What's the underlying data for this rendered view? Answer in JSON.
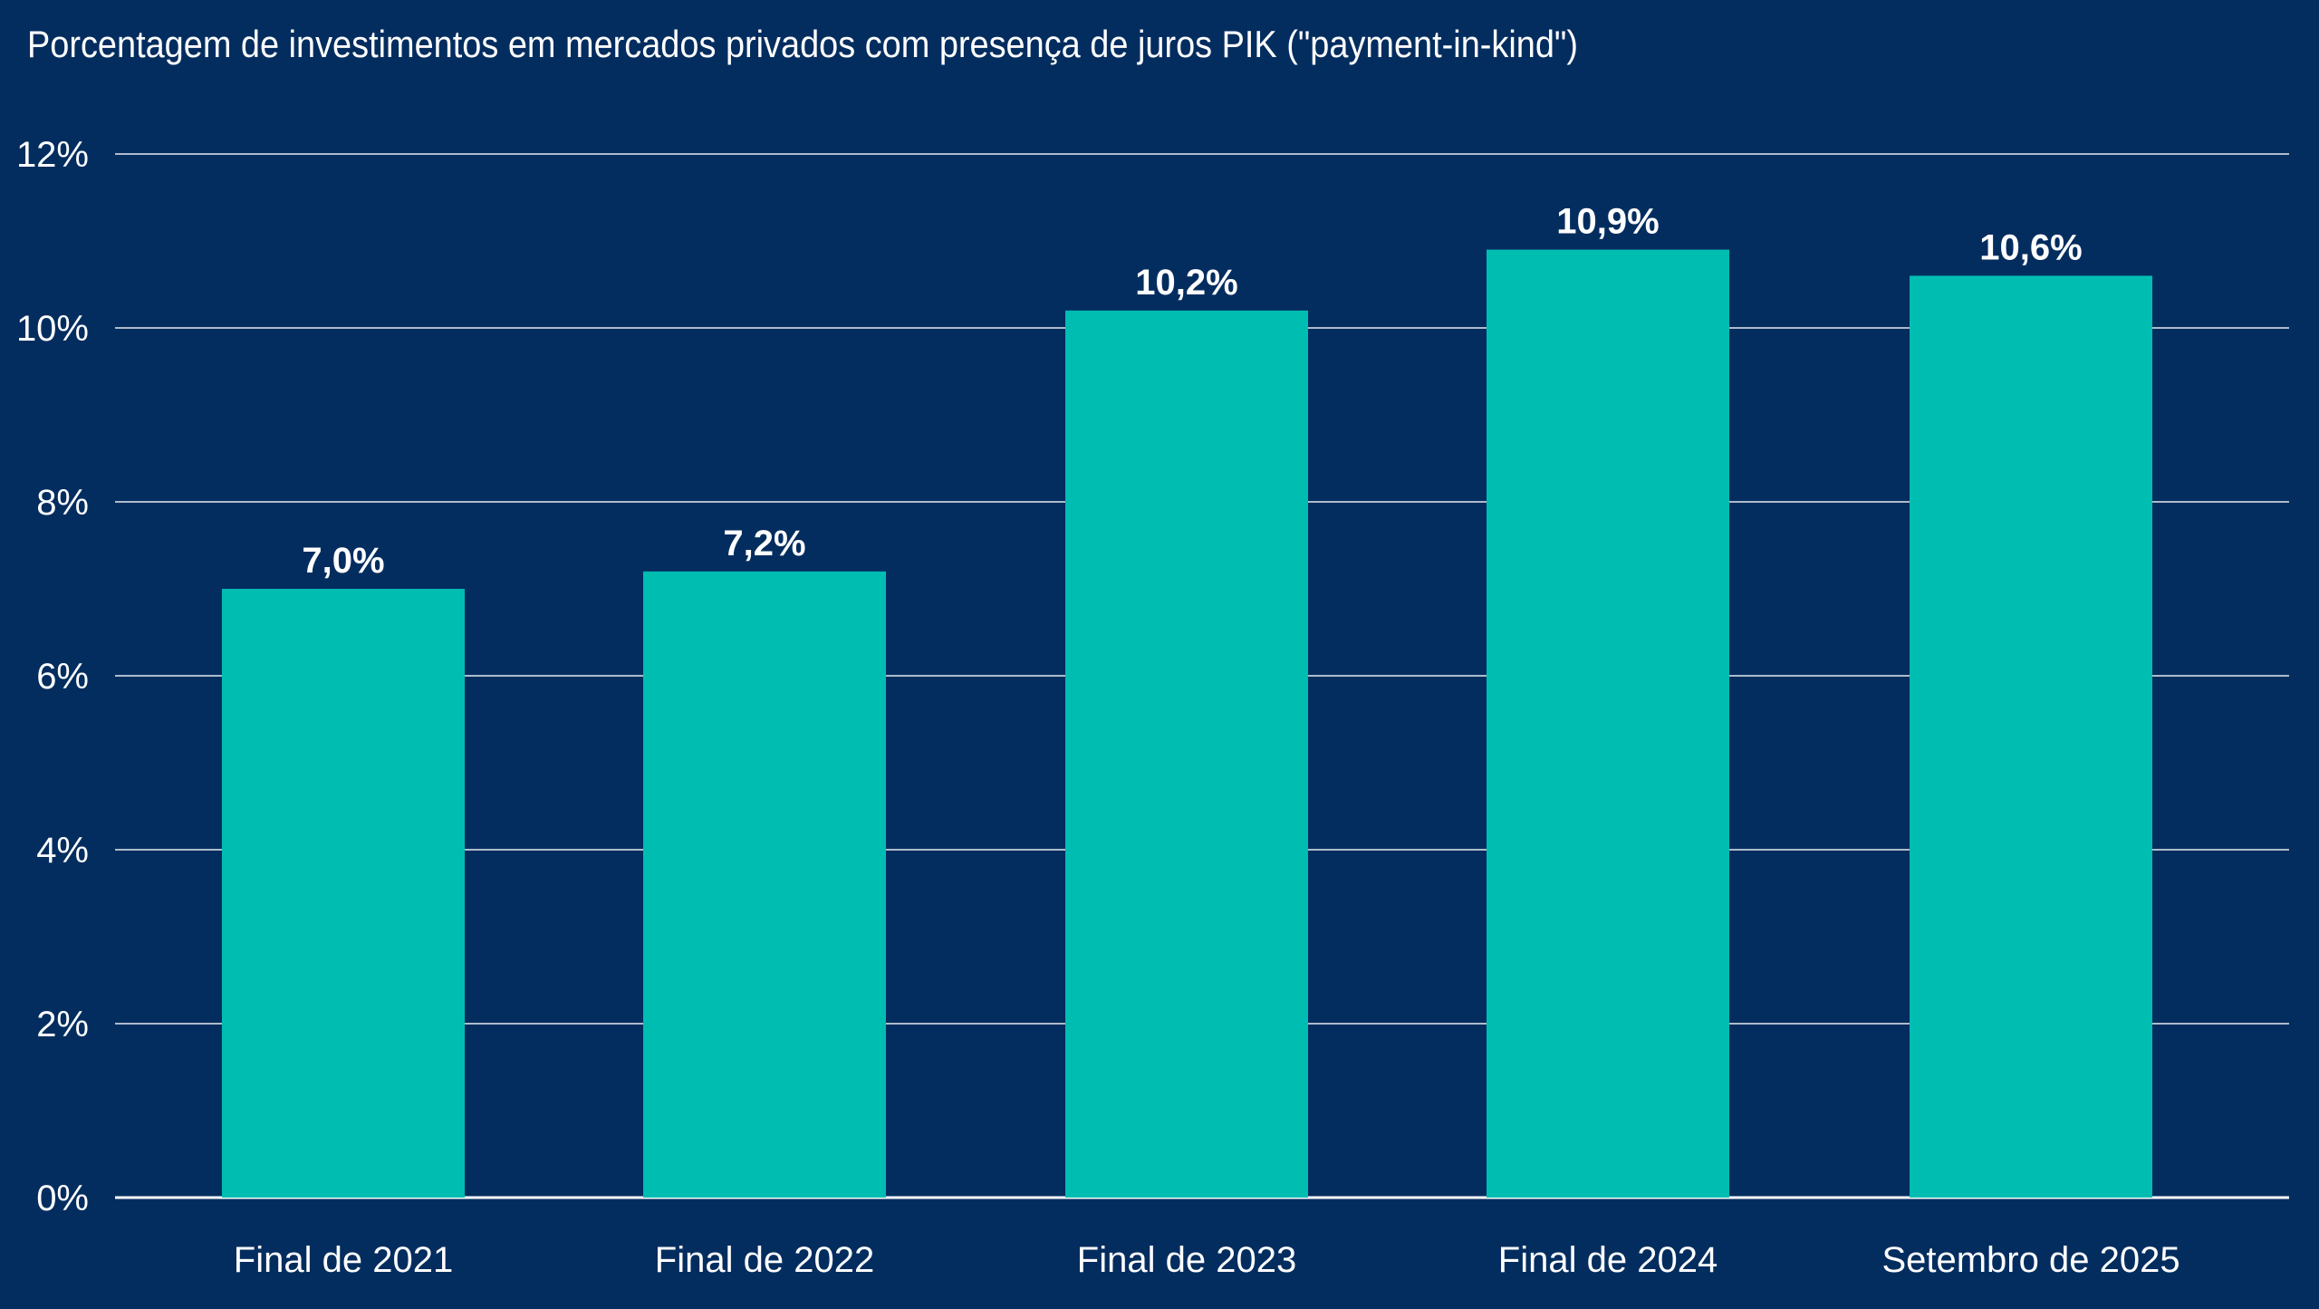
{
  "chart_data": {
    "type": "bar",
    "title": "Porcentagem de investimentos em mercados privados com presença de juros PIK (\"payment-in-kind\")",
    "categories": [
      "Final de 2021",
      "Final de 2022",
      "Final de 2023",
      "Final de 2024",
      "Setembro de 2025"
    ],
    "values": [
      7.0,
      7.2,
      10.2,
      10.9,
      10.6
    ],
    "data_labels": [
      "7,0%",
      "7,2%",
      "10,2%",
      "10,9%",
      "10,6%"
    ],
    "xlabel": "",
    "ylabel": "",
    "ylim": [
      0,
      12
    ],
    "yticks": [
      0,
      2,
      4,
      6,
      8,
      10,
      12
    ],
    "ytick_labels": [
      "0%",
      "2%",
      "4%",
      "6%",
      "8%",
      "10%",
      "12%"
    ],
    "grid": true,
    "legend": "none",
    "colors": {
      "background": "#042d5f",
      "bar": "#00bdb2",
      "grid": "#ffffff",
      "text": "#ffffff"
    }
  }
}
